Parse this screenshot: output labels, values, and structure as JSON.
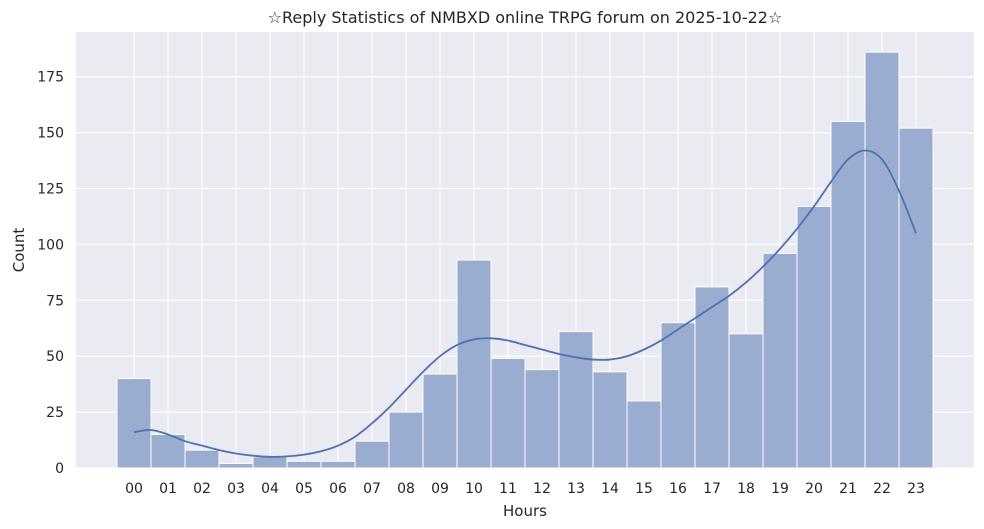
{
  "chart_data": {
    "type": "bar",
    "title": "☆Reply Statistics of NMBXD online TRPG forum on 2025-10-22☆",
    "xlabel": "Hours",
    "ylabel": "Count",
    "categories": [
      "00",
      "01",
      "02",
      "03",
      "04",
      "05",
      "06",
      "07",
      "08",
      "09",
      "10",
      "11",
      "12",
      "13",
      "14",
      "15",
      "16",
      "17",
      "18",
      "19",
      "20",
      "21",
      "22",
      "23"
    ],
    "values": [
      40,
      15,
      8,
      2,
      5,
      3,
      3,
      12,
      25,
      42,
      93,
      49,
      44,
      61,
      43,
      30,
      65,
      81,
      60,
      96,
      117,
      155,
      186,
      152
    ],
    "yticks": [
      0,
      25,
      50,
      75,
      100,
      125,
      150,
      175
    ],
    "ylim": [
      0,
      195
    ],
    "grid": true,
    "kde": {
      "x": [
        0,
        0.5,
        1,
        1.5,
        2,
        2.5,
        3,
        3.5,
        4,
        4.5,
        5,
        5.5,
        6,
        6.5,
        7,
        7.5,
        8,
        8.5,
        9,
        9.5,
        10,
        10.5,
        11,
        11.5,
        12,
        12.5,
        13,
        13.5,
        14,
        14.5,
        15,
        15.5,
        16,
        16.5,
        17,
        17.5,
        18,
        18.5,
        19,
        19.5,
        20,
        20.5,
        21,
        21.5,
        22,
        22.5,
        23
      ],
      "y": [
        16,
        17,
        15,
        12,
        10,
        8,
        6.5,
        5.5,
        5,
        5.2,
        6,
        7.5,
        10,
        14,
        20,
        27,
        35,
        43,
        50,
        55,
        57.5,
        58,
        57,
        55,
        53,
        51,
        49.5,
        48.5,
        48.5,
        50,
        53,
        57,
        62,
        67,
        72,
        77,
        83,
        90,
        98,
        107,
        117,
        128,
        138,
        142,
        138,
        124,
        105
      ]
    },
    "colors": {
      "bar_fill": "#9aadd0",
      "bar_stroke": "#ffffff",
      "kde_line": "#4c72b0",
      "plot_bg": "#eaeaf2",
      "grid": "#ffffff"
    }
  }
}
